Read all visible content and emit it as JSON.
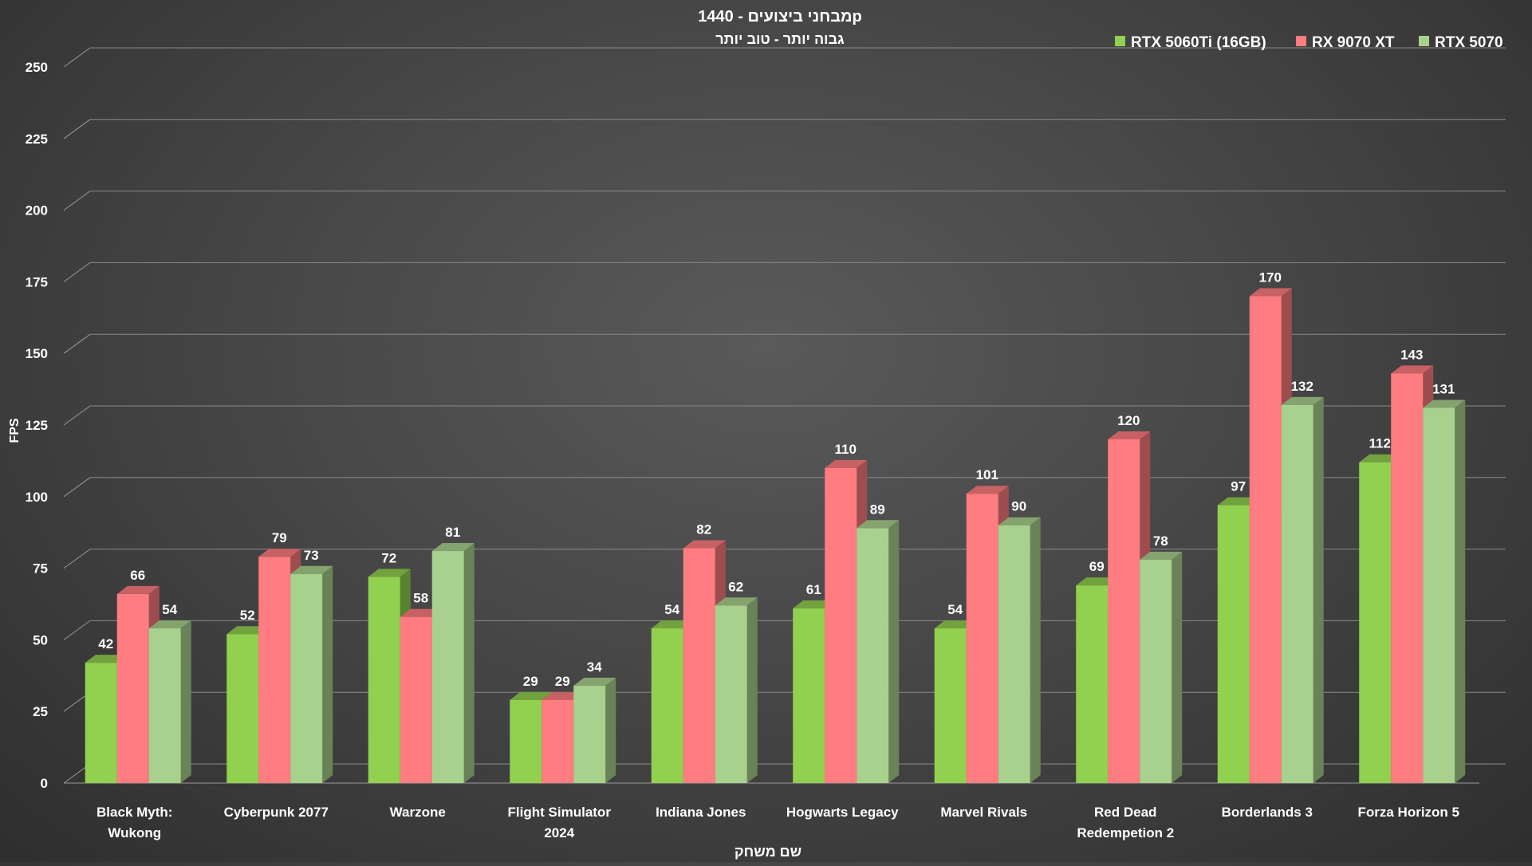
{
  "chart_data": {
    "type": "bar",
    "title": "מבחני ביצועים - 1440p",
    "subtitle": "גבוה יותר - טוב יותר",
    "xlabel": "שם משחק",
    "ylabel": "FPS",
    "ylim": [
      0,
      250
    ],
    "ytick_step": 25,
    "grid": true,
    "legend_position": "top-right",
    "categories": [
      [
        "Black Myth:",
        "Wukong"
      ],
      [
        "Cyberpunk 2077"
      ],
      [
        "Warzone"
      ],
      [
        "Flight Simulator",
        "2024"
      ],
      [
        "Indiana Jones"
      ],
      [
        "Hogwarts Legacy"
      ],
      [
        "Marvel Rivals"
      ],
      [
        "Red Dead",
        "Redempetion 2"
      ],
      [
        "Borderlands 3"
      ],
      [
        "Forza Horizon 5"
      ]
    ],
    "series": [
      {
        "name": "RTX 5060Ti (16GB)",
        "color": "#92d050",
        "values": [
          42,
          52,
          72,
          29,
          54,
          61,
          54,
          69,
          97,
          112
        ]
      },
      {
        "name": "RX 9070 XT",
        "color": "#ff7c80",
        "values": [
          66,
          79,
          58,
          29,
          82,
          110,
          101,
          120,
          170,
          143
        ]
      },
      {
        "name": "RTX 5070",
        "color": "#a9d18e",
        "values": [
          54,
          73,
          81,
          34,
          62,
          89,
          90,
          78,
          132,
          131
        ]
      }
    ]
  }
}
